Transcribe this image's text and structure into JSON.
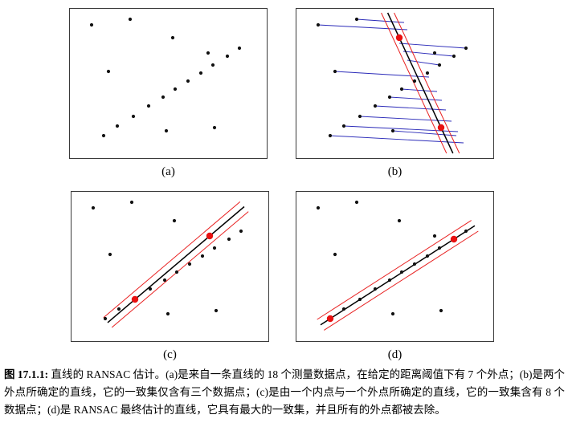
{
  "figure": {
    "panels": [
      {
        "id": "a",
        "label": "(a)"
      },
      {
        "id": "b",
        "label": "(b)"
      },
      {
        "id": "c",
        "label": "(c)"
      },
      {
        "id": "d",
        "label": "(d)"
      }
    ],
    "caption": {
      "prefix": "图 17.1.1:",
      "text": " 直线的 RANSAC 估计。(a)是来自一条直线的 18 个测量数据点，在给定的距离阈值下有 7 个外点；(b)是两个外点所确定的直线，它的一致集仅含有三个数据点；(c)是由一个内点与一个外点所确定的直线，它的一致集含有 8 个数据点；(d)是 RANSAC 最终估计的直线，它具有最大的一致集，并且所有的外点都被去除。"
    }
  },
  "colors": {
    "point": "#111111",
    "sample_point": "#e81010",
    "model_line": "#000000",
    "threshold_line": "#e82020",
    "distance_line": "#2a2ab8",
    "panel_border": "#3a3a3a"
  },
  "chart_data": [
    {
      "type": "scatter",
      "panel": "a",
      "title": "18 measured data points, 7 outliers",
      "xlim": [
        0,
        245
      ],
      "ylim": [
        0,
        186
      ],
      "points": [
        [
          27,
          20
        ],
        [
          75,
          13
        ],
        [
          128,
          36
        ],
        [
          172,
          55
        ],
        [
          48,
          78
        ],
        [
          180,
          148
        ],
        [
          120,
          152
        ],
        [
          42,
          158
        ],
        [
          59,
          146
        ],
        [
          79,
          134
        ],
        [
          98,
          121
        ],
        [
          116,
          110
        ],
        [
          131,
          100
        ],
        [
          147,
          90
        ],
        [
          163,
          80
        ],
        [
          178,
          70
        ],
        [
          196,
          59
        ],
        [
          211,
          49
        ]
      ]
    },
    {
      "type": "scatter",
      "panel": "b",
      "title": "Line from two outliers, consensus set of three points",
      "xlim": [
        0,
        245
      ],
      "ylim": [
        0,
        186
      ],
      "points": [
        [
          27,
          20
        ],
        [
          75,
          13
        ],
        [
          128,
          36
        ],
        [
          172,
          55
        ],
        [
          48,
          78
        ],
        [
          180,
          148
        ],
        [
          120,
          152
        ],
        [
          42,
          158
        ],
        [
          59,
          146
        ],
        [
          79,
          134
        ],
        [
          98,
          121
        ],
        [
          116,
          110
        ],
        [
          131,
          100
        ],
        [
          147,
          90
        ],
        [
          163,
          80
        ],
        [
          178,
          70
        ],
        [
          196,
          59
        ],
        [
          211,
          49
        ]
      ],
      "sample_points": [
        [
          128,
          36
        ],
        [
          180,
          148
        ]
      ],
      "model_line": [
        [
          113.6,
          5
        ],
        [
          194.8,
          180
        ]
      ],
      "threshold_lines": [
        [
          [
            105.6,
            5
          ],
          [
            186.8,
            180
          ]
        ],
        [
          [
            121.6,
            5
          ],
          [
            202.8,
            180
          ]
        ]
      ],
      "distance_segments": [
        [
          27,
          20,
          138,
          26
        ],
        [
          75,
          13,
          134,
          17
        ],
        [
          48,
          78,
          165,
          85
        ],
        [
          120,
          152,
          199,
          158
        ],
        [
          42,
          158,
          208,
          167
        ],
        [
          59,
          146,
          201,
          153
        ],
        [
          79,
          134,
          193,
          140
        ],
        [
          98,
          121,
          186,
          126
        ],
        [
          116,
          110,
          181,
          114
        ],
        [
          131,
          100,
          175,
          103
        ],
        [
          211,
          49,
          128,
          43
        ],
        [
          196,
          59,
          133,
          53
        ],
        [
          178,
          70,
          138,
          64
        ]
      ]
    },
    {
      "type": "scatter",
      "panel": "c",
      "title": "Line from one inlier and one outlier, consensus set of 8 points",
      "xlim": [
        0,
        245
      ],
      "ylim": [
        0,
        186
      ],
      "points": [
        [
          27,
          20
        ],
        [
          75,
          13
        ],
        [
          128,
          36
        ],
        [
          172,
          55
        ],
        [
          48,
          78
        ],
        [
          180,
          148
        ],
        [
          120,
          152
        ],
        [
          42,
          158
        ],
        [
          59,
          146
        ],
        [
          79,
          134
        ],
        [
          98,
          121
        ],
        [
          116,
          110
        ],
        [
          131,
          100
        ],
        [
          147,
          90
        ],
        [
          163,
          80
        ],
        [
          178,
          70
        ],
        [
          196,
          59
        ],
        [
          211,
          49
        ]
      ],
      "sample_points": [
        [
          79,
          134
        ],
        [
          172,
          55
        ]
      ],
      "model_line": [
        [
          45,
          162.9
        ],
        [
          215,
          18.5
        ]
      ],
      "threshold_lines": [
        [
          [
            50.2,
            169.0
          ],
          [
            220.2,
            24.6
          ]
        ],
        [
          [
            39.8,
            156.8
          ],
          [
            209.8,
            12.4
          ]
        ]
      ],
      "distance_segments": []
    },
    {
      "type": "scatter",
      "panel": "d",
      "title": "Final RANSAC line with largest consensus set, outliers removed",
      "xlim": [
        0,
        245
      ],
      "ylim": [
        0,
        186
      ],
      "points": [
        [
          27,
          20
        ],
        [
          75,
          13
        ],
        [
          128,
          36
        ],
        [
          172,
          55
        ],
        [
          48,
          78
        ],
        [
          180,
          148
        ],
        [
          120,
          152
        ],
        [
          42,
          158
        ],
        [
          59,
          146
        ],
        [
          79,
          134
        ],
        [
          98,
          121
        ],
        [
          116,
          110
        ],
        [
          131,
          100
        ],
        [
          147,
          90
        ],
        [
          163,
          80
        ],
        [
          178,
          70
        ],
        [
          196,
          59
        ],
        [
          211,
          49
        ]
      ],
      "sample_points": [
        [
          42,
          158
        ],
        [
          196,
          59
        ]
      ],
      "model_line": [
        [
          30,
          165.7
        ],
        [
          222,
          42.3
        ]
      ],
      "threshold_lines": [
        [
          [
            34.3,
            172.4
          ],
          [
            226.3,
            49.0
          ]
        ],
        [
          [
            25.7,
            159.0
          ],
          [
            217.7,
            35.6
          ]
        ]
      ],
      "distance_segments": []
    }
  ]
}
